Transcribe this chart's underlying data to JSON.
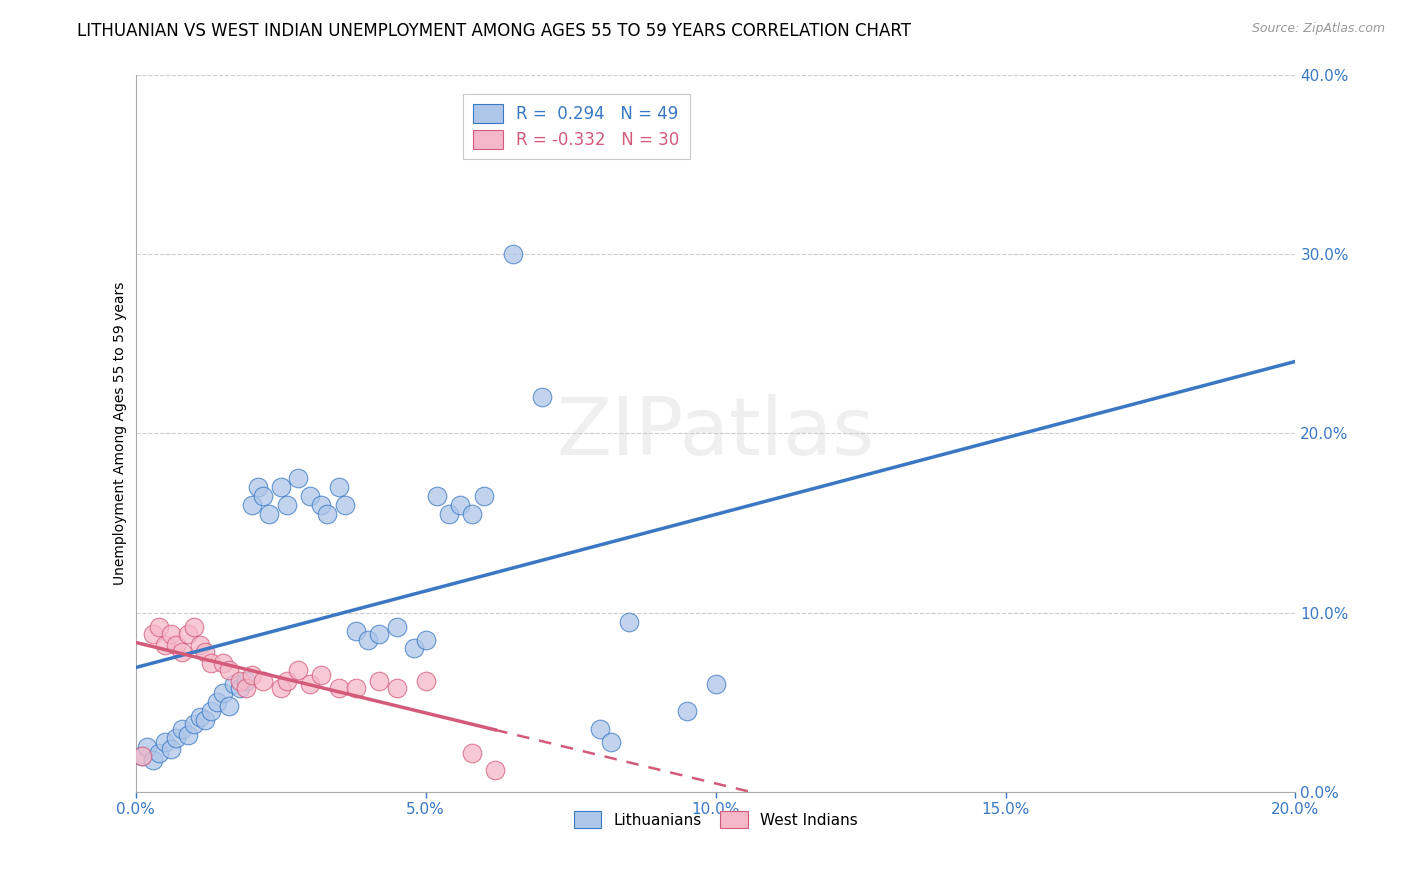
{
  "title": "LITHUANIAN VS WEST INDIAN UNEMPLOYMENT AMONG AGES 55 TO 59 YEARS CORRELATION CHART",
  "source": "Source: ZipAtlas.com",
  "ylabel": "Unemployment Among Ages 55 to 59 years",
  "xlim": [
    0.0,
    0.2
  ],
  "ylim": [
    0.0,
    0.4
  ],
  "xticks": [
    0.0,
    0.05,
    0.1,
    0.15,
    0.2
  ],
  "yticks": [
    0.0,
    0.1,
    0.2,
    0.3,
    0.4
  ],
  "R_blue": 0.294,
  "N_blue": 49,
  "R_pink": -0.332,
  "N_pink": 30,
  "blue_color": "#aec6e8",
  "pink_color": "#f5b8c8",
  "blue_line_color": "#3a78c4",
  "pink_line_color": "#d45a7a",
  "blue_scatter": [
    [
      0.001,
      0.02
    ],
    [
      0.002,
      0.025
    ],
    [
      0.003,
      0.018
    ],
    [
      0.004,
      0.022
    ],
    [
      0.005,
      0.028
    ],
    [
      0.006,
      0.024
    ],
    [
      0.007,
      0.03
    ],
    [
      0.008,
      0.035
    ],
    [
      0.009,
      0.032
    ],
    [
      0.01,
      0.038
    ],
    [
      0.011,
      0.042
    ],
    [
      0.012,
      0.04
    ],
    [
      0.013,
      0.045
    ],
    [
      0.014,
      0.05
    ],
    [
      0.015,
      0.055
    ],
    [
      0.016,
      0.048
    ],
    [
      0.017,
      0.06
    ],
    [
      0.018,
      0.058
    ],
    [
      0.019,
      0.062
    ],
    [
      0.02,
      0.16
    ],
    [
      0.021,
      0.17
    ],
    [
      0.022,
      0.165
    ],
    [
      0.023,
      0.155
    ],
    [
      0.025,
      0.17
    ],
    [
      0.026,
      0.16
    ],
    [
      0.028,
      0.175
    ],
    [
      0.03,
      0.165
    ],
    [
      0.032,
      0.16
    ],
    [
      0.033,
      0.155
    ],
    [
      0.035,
      0.17
    ],
    [
      0.036,
      0.16
    ],
    [
      0.038,
      0.09
    ],
    [
      0.04,
      0.085
    ],
    [
      0.042,
      0.088
    ],
    [
      0.045,
      0.092
    ],
    [
      0.048,
      0.08
    ],
    [
      0.05,
      0.085
    ],
    [
      0.052,
      0.165
    ],
    [
      0.054,
      0.155
    ],
    [
      0.056,
      0.16
    ],
    [
      0.058,
      0.155
    ],
    [
      0.06,
      0.165
    ],
    [
      0.065,
      0.3
    ],
    [
      0.07,
      0.22
    ],
    [
      0.08,
      0.035
    ],
    [
      0.082,
      0.028
    ],
    [
      0.085,
      0.095
    ],
    [
      0.095,
      0.045
    ],
    [
      0.1,
      0.06
    ]
  ],
  "pink_scatter": [
    [
      0.001,
      0.02
    ],
    [
      0.003,
      0.088
    ],
    [
      0.004,
      0.092
    ],
    [
      0.005,
      0.082
    ],
    [
      0.006,
      0.088
    ],
    [
      0.007,
      0.082
    ],
    [
      0.008,
      0.078
    ],
    [
      0.009,
      0.088
    ],
    [
      0.01,
      0.092
    ],
    [
      0.011,
      0.082
    ],
    [
      0.012,
      0.078
    ],
    [
      0.013,
      0.072
    ],
    [
      0.015,
      0.072
    ],
    [
      0.016,
      0.068
    ],
    [
      0.018,
      0.062
    ],
    [
      0.019,
      0.058
    ],
    [
      0.02,
      0.065
    ],
    [
      0.022,
      0.062
    ],
    [
      0.025,
      0.058
    ],
    [
      0.026,
      0.062
    ],
    [
      0.028,
      0.068
    ],
    [
      0.03,
      0.06
    ],
    [
      0.032,
      0.065
    ],
    [
      0.035,
      0.058
    ],
    [
      0.038,
      0.058
    ],
    [
      0.042,
      0.062
    ],
    [
      0.045,
      0.058
    ],
    [
      0.05,
      0.062
    ],
    [
      0.058,
      0.022
    ],
    [
      0.062,
      0.012
    ]
  ],
  "background_color": "#ffffff",
  "grid_color": "#cccccc",
  "title_fontsize": 12,
  "axis_label_fontsize": 10,
  "tick_fontsize": 11,
  "legend_fontsize": 12
}
